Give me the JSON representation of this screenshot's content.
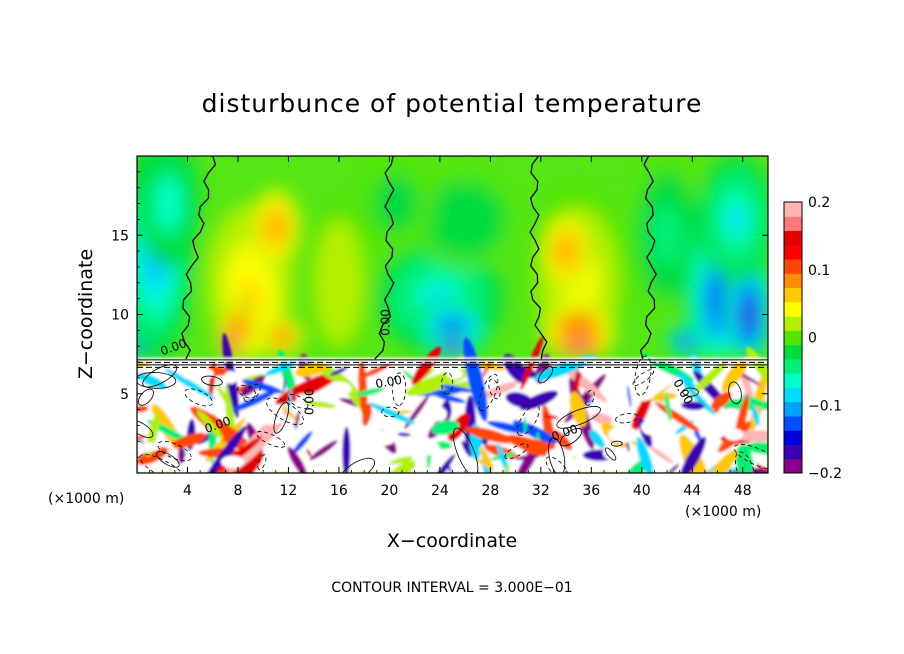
{
  "chart_data": {
    "type": "heatmap",
    "title": "disturbunce of potential temperature",
    "xlabel": "X−coordinate",
    "ylabel": "Z−coordinate",
    "x_unit": "(×1000 m)",
    "x_unit_right": "(×1000 m)",
    "xlim": [
      0,
      50
    ],
    "ylim": [
      0,
      20
    ],
    "x_ticks": [
      4,
      8,
      12,
      16,
      20,
      24,
      28,
      32,
      36,
      40,
      44,
      48
    ],
    "x_tick_labels": [
      "4",
      "8",
      "12",
      "16",
      "20",
      "24",
      "28",
      "32",
      "36",
      "40",
      "44",
      "48"
    ],
    "y_ticks": [
      5,
      10,
      15
    ],
    "y_tick_labels": [
      "5",
      "10",
      "15"
    ],
    "colorbar": {
      "range": [
        -0.2,
        0.2
      ],
      "ticks": [
        0.2,
        0.1,
        0,
        -0.1,
        -0.2
      ],
      "tick_labels": [
        "0.2",
        "0.1",
        "0",
        "−0.1",
        "−0.2"
      ],
      "colors": [
        "#8b008b",
        "#3c00b4",
        "#0000dc",
        "#0050ff",
        "#00a0ff",
        "#00dcff",
        "#00ffc8",
        "#00f078",
        "#00dc3c",
        "#50e600",
        "#b4f000",
        "#ffff00",
        "#ffc800",
        "#ff8c00",
        "#ff4600",
        "#ff0000",
        "#e60000",
        "#ff7878",
        "#ffb4b4"
      ]
    },
    "zero_contours_upper_x": [
      6,
      20,
      31.5,
      40.5
    ],
    "inversion_height": 7.2,
    "contour_labels": [
      {
        "text": "0.00",
        "x": 3,
        "y": 7.7,
        "angle": -20
      },
      {
        "text": "0.00",
        "x": 20,
        "y": 9.5,
        "angle": -90
      },
      {
        "text": "0.00",
        "x": 14,
        "y": 4.5,
        "angle": -90
      },
      {
        "text": "0.00",
        "x": 20,
        "y": 5.5,
        "angle": -10
      },
      {
        "text": "0.00",
        "x": 6.5,
        "y": 2.8,
        "angle": -20
      },
      {
        "text": "0.00",
        "x": 34,
        "y": 2.3,
        "angle": -20
      },
      {
        "text": "0.00",
        "x": 43,
        "y": 5.0,
        "angle": 60
      }
    ],
    "footer": "CONTOUR INTERVAL = 3.000E−01",
    "grid": false
  }
}
